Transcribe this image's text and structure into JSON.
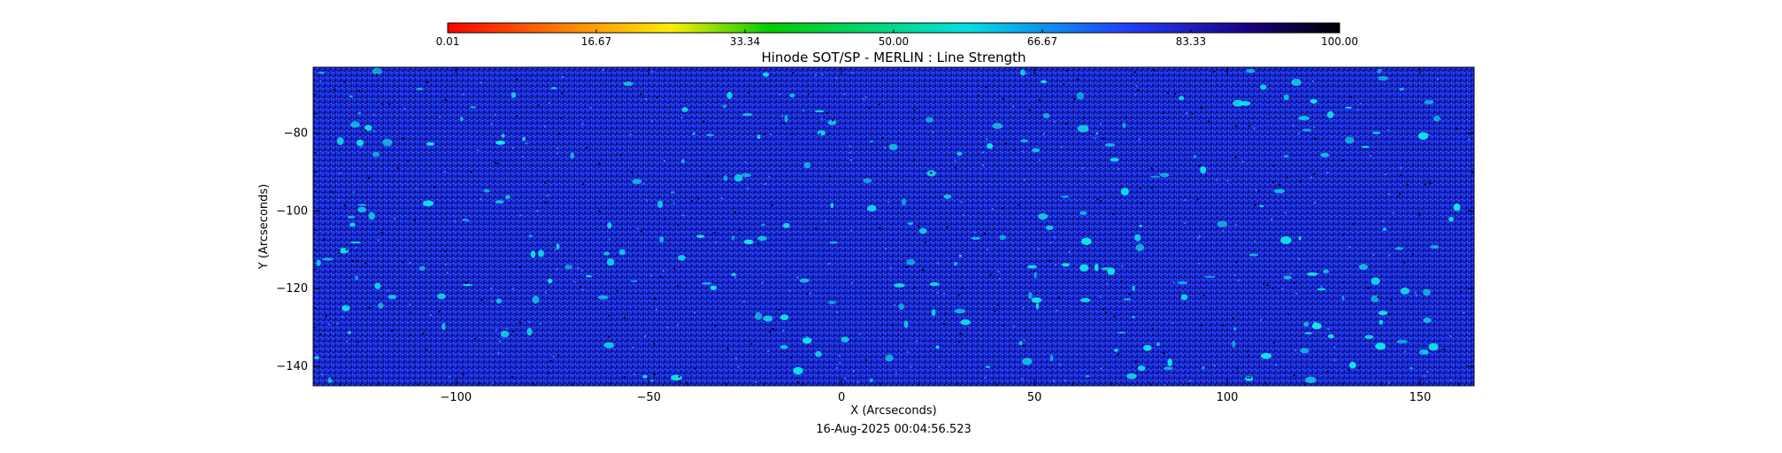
{
  "chart_data": {
    "type": "heatmap",
    "title": "Hinode SOT/SP - MERLIN : Line Strength",
    "xlabel": "X (Arcseconds)",
    "ylabel": "Y (Arcseconds)",
    "timestamp": "16-Aug-2025 00:04:56.523",
    "xlim": [
      -137,
      164
    ],
    "ylim": [
      -145,
      -63
    ],
    "x_ticks": [
      {
        "value": -100,
        "label": "−100"
      },
      {
        "value": -50,
        "label": "−50"
      },
      {
        "value": 0,
        "label": "0"
      },
      {
        "value": 50,
        "label": "50"
      },
      {
        "value": 100,
        "label": "100"
      },
      {
        "value": 150,
        "label": "150"
      }
    ],
    "y_ticks": [
      {
        "value": -80,
        "label": "−80"
      },
      {
        "value": -100,
        "label": "−100"
      },
      {
        "value": -120,
        "label": "−120"
      },
      {
        "value": -140,
        "label": "−140"
      }
    ],
    "colorbar": {
      "range": [
        0.01,
        100.0
      ],
      "tick_labels": [
        "0.01",
        "16.67",
        "33.34",
        "50.00",
        "66.67",
        "83.33",
        "100.00"
      ],
      "tick_values": [
        0.01,
        16.67,
        33.34,
        50.0,
        66.67,
        83.33,
        100.0
      ],
      "colors": [
        "#ff0000",
        "#ff8800",
        "#ffee00",
        "#00cc00",
        "#00e0e0",
        "#2040ff",
        "#1a0080",
        "#000000"
      ]
    },
    "dominant_value_range": [
      70,
      100
    ],
    "background_color": "#1a2ee0",
    "highlight_color": "#10e8e8"
  }
}
